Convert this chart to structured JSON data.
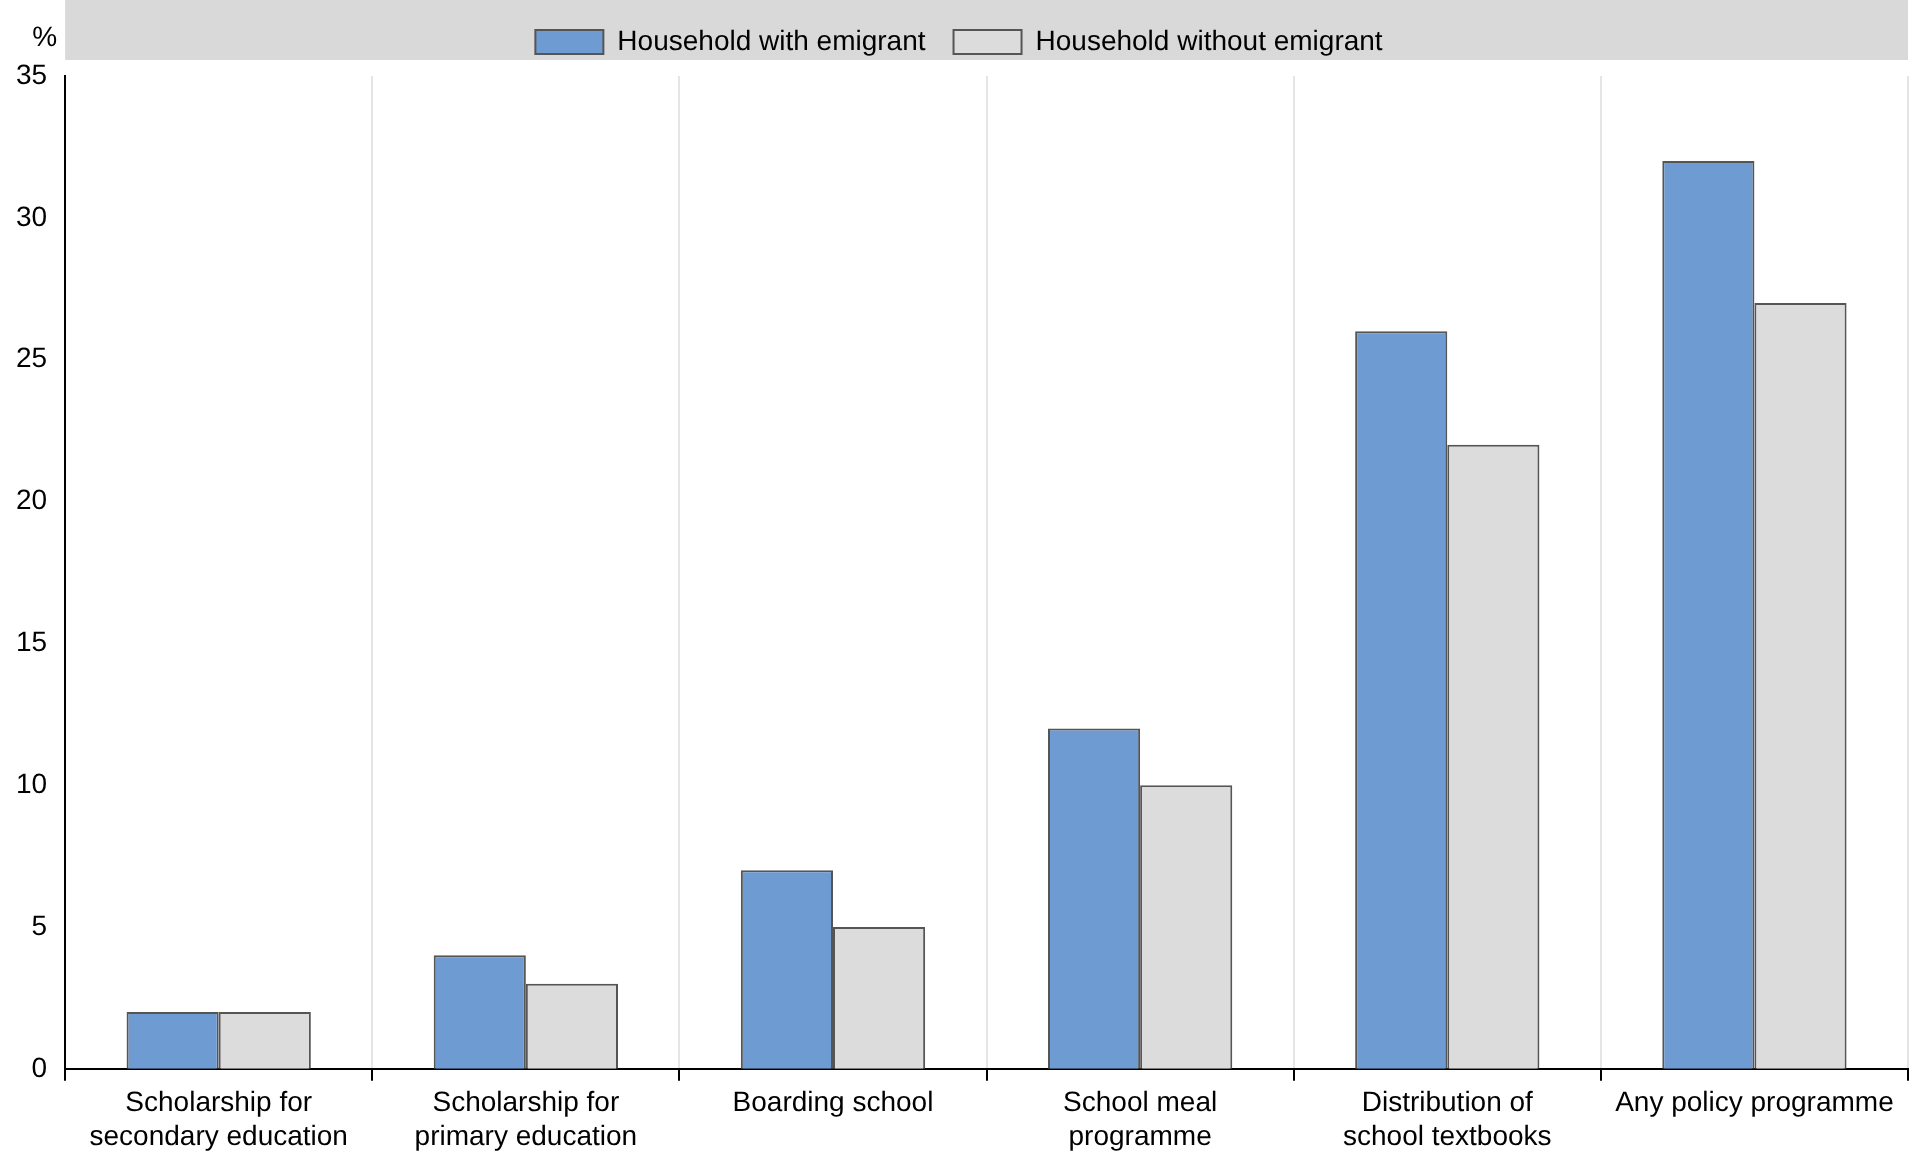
{
  "chart_data": {
    "type": "bar",
    "ylabel": "%",
    "categories": [
      "Scholarship for secondary education",
      "Scholarship for primary education",
      "Boarding school",
      "School meal programme",
      "Distribution of school textbooks",
      "Any policy programme"
    ],
    "series": [
      {
        "name": "Household with emigrant",
        "color": "#6f9bd3",
        "values": [
          2,
          4,
          7,
          12,
          26,
          32
        ]
      },
      {
        "name": "Household without emigrant",
        "color": "#dcdcdc",
        "values": [
          2,
          3,
          5,
          10,
          22,
          27
        ]
      }
    ],
    "ylim": [
      0,
      35
    ],
    "yticks": [
      0,
      5,
      10,
      15,
      20,
      25,
      30,
      35
    ],
    "grid": "x",
    "legend": "top"
  }
}
